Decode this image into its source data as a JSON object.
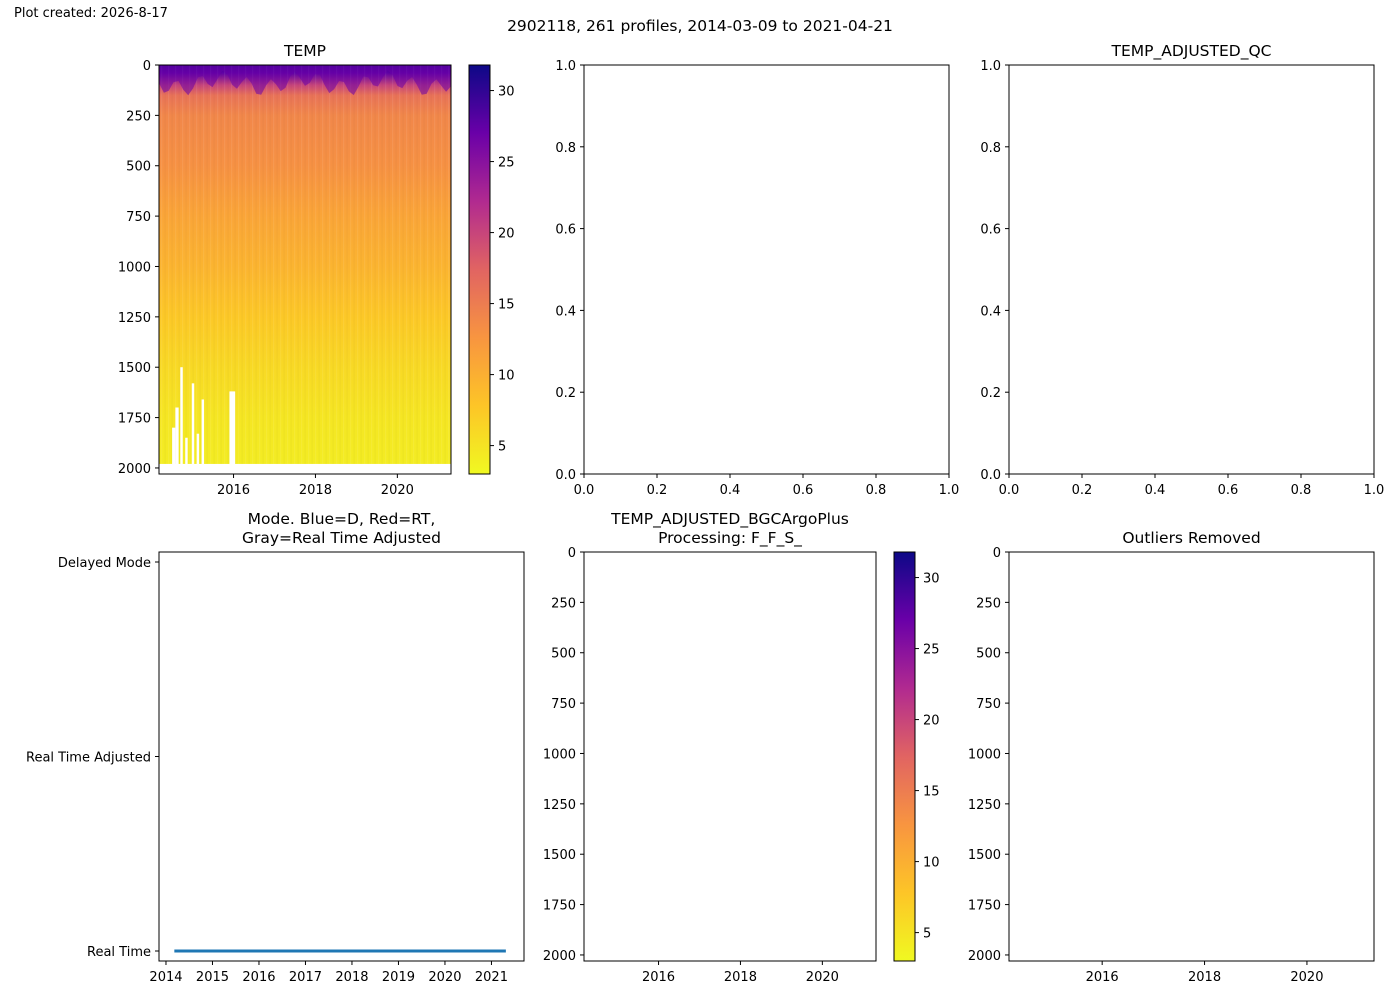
{
  "header": {
    "plot_created": "Plot created: 2026-8-17",
    "suptitle": "2902118, 261 profiles, 2014-03-09 to 2021-04-21"
  },
  "colormap": {
    "name": "plasma_r",
    "stops": [
      "#f0f921",
      "#fdc527",
      "#f89540",
      "#e16462",
      "#b12a90",
      "#6a00a8",
      "#0d0887"
    ]
  },
  "chart_data": [
    {
      "id": "temp",
      "type": "heatmap",
      "title": "TEMP",
      "xlabel": "",
      "ylabel": "",
      "xlim": [
        2014.18,
        2021.31
      ],
      "ylim": [
        2030,
        0
      ],
      "xticks": [
        2016,
        2018,
        2020
      ],
      "yticks": [
        0,
        250,
        500,
        750,
        1000,
        1250,
        1500,
        1750,
        2000
      ],
      "colorbar": {
        "range": [
          3.0,
          31.8
        ],
        "ticks": [
          5,
          10,
          15,
          20,
          25,
          30
        ]
      },
      "depth_profile": [
        {
          "depth": 0,
          "value": 29.5
        },
        {
          "depth": 40,
          "value": 27.5
        },
        {
          "depth": 100,
          "value": 20
        },
        {
          "depth": 150,
          "value": 16
        },
        {
          "depth": 250,
          "value": 14
        },
        {
          "depth": 500,
          "value": 13
        },
        {
          "depth": 750,
          "value": 11
        },
        {
          "depth": 1000,
          "value": 9.5
        },
        {
          "depth": 1250,
          "value": 7.5
        },
        {
          "depth": 1500,
          "value": 6
        },
        {
          "depth": 1750,
          "value": 4.8
        },
        {
          "depth": 2000,
          "value": 4.2
        }
      ],
      "profile_max_depth": 1980,
      "gaps": [
        {
          "start": 2014.5,
          "end": 2014.58,
          "top_depth": 1800
        },
        {
          "start": 2014.58,
          "end": 2014.66,
          "top_depth": 1700
        },
        {
          "start": 2014.7,
          "end": 2014.76,
          "top_depth": 1500
        },
        {
          "start": 2014.82,
          "end": 2014.88,
          "top_depth": 1850
        },
        {
          "start": 2014.98,
          "end": 2015.04,
          "top_depth": 1580
        },
        {
          "start": 2015.1,
          "end": 2015.16,
          "top_depth": 1830
        },
        {
          "start": 2015.22,
          "end": 2015.28,
          "top_depth": 1660
        },
        {
          "start": 2015.9,
          "end": 2016.04,
          "top_depth": 1620
        }
      ]
    },
    {
      "id": "empty",
      "type": "scatter",
      "title": "",
      "xlim": [
        0.0,
        1.0
      ],
      "ylim": [
        0.0,
        1.0
      ],
      "xticks": [
        "0.0",
        "0.2",
        "0.4",
        "0.6",
        "0.8",
        "1.0"
      ],
      "yticks": [
        "0.0",
        "0.2",
        "0.4",
        "0.6",
        "0.8",
        "1.0"
      ],
      "series": []
    },
    {
      "id": "temp-adjusted-qc",
      "type": "scatter",
      "title": "TEMP_ADJUSTED_QC",
      "xlim": [
        0.0,
        1.0
      ],
      "ylim": [
        0.0,
        1.0
      ],
      "xticks": [
        "0.0",
        "0.2",
        "0.4",
        "0.6",
        "0.8",
        "1.0"
      ],
      "yticks": [
        "0.0",
        "0.2",
        "0.4",
        "0.6",
        "0.8",
        "1.0"
      ],
      "series": []
    },
    {
      "id": "mode",
      "type": "line",
      "title_lines": [
        "Mode. Blue=D, Red=RT,",
        "Gray=Real Time Adjusted"
      ],
      "xlim": [
        2013.85,
        2021.7
      ],
      "xticks": [
        2014,
        2015,
        2016,
        2017,
        2018,
        2019,
        2020,
        2021
      ],
      "ycategories": [
        "Real Time",
        "Real Time Adjusted",
        "Delayed Mode"
      ],
      "series": [
        {
          "color": "#1f77b4",
          "x": [
            2014.18,
            2021.31
          ],
          "y": [
            "Real Time",
            "Real Time"
          ]
        }
      ]
    },
    {
      "id": "temp-adjusted-bgc",
      "type": "heatmap",
      "title_lines": [
        "TEMP_ADJUSTED_BGCArgoPlus",
        "Processing: F_F_S_"
      ],
      "xlim": [
        2014.18,
        2021.31
      ],
      "ylim": [
        2030,
        0
      ],
      "xticks": [
        2016,
        2018,
        2020
      ],
      "yticks": [
        0,
        250,
        500,
        750,
        1000,
        1250,
        1500,
        1750,
        2000
      ],
      "colorbar": {
        "range": [
          3.0,
          31.8
        ],
        "ticks": [
          5,
          10,
          15,
          20,
          25,
          30
        ]
      }
    },
    {
      "id": "outliers",
      "type": "scatter",
      "title": "Outliers Removed",
      "xlim": [
        2014.18,
        2021.31
      ],
      "ylim": [
        2030,
        0
      ],
      "xticks": [
        2016,
        2018,
        2020
      ],
      "yticks": [
        0,
        250,
        500,
        750,
        1000,
        1250,
        1500,
        1750,
        2000
      ],
      "series": []
    }
  ]
}
